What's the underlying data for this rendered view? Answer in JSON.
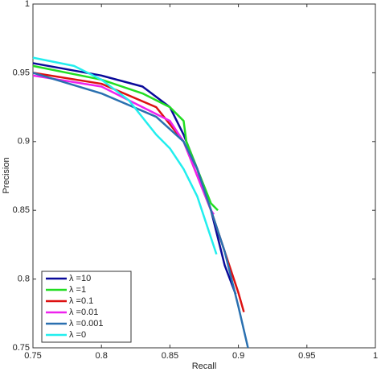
{
  "chart_data": {
    "type": "line",
    "x_label": "Recall",
    "y_label": "Precision",
    "xlim": [
      0.75,
      1
    ],
    "ylim": [
      0.75,
      1
    ],
    "xticks": [
      0.75,
      0.8,
      0.85,
      0.9,
      0.95,
      1
    ],
    "yticks": [
      0.75,
      0.8,
      0.85,
      0.9,
      0.95,
      1
    ],
    "legend": "lower-left",
    "series": [
      {
        "name": "λ =10",
        "color": "#0a0a9a",
        "x": [
          0.75,
          0.8,
          0.83,
          0.85,
          0.86,
          0.87,
          0.88,
          0.89,
          0.898
        ],
        "values": [
          0.957,
          0.948,
          0.94,
          0.925,
          0.905,
          0.88,
          0.85,
          0.81,
          0.789
        ]
      },
      {
        "name": "λ =1",
        "color": "#22dd22",
        "x": [
          0.75,
          0.8,
          0.83,
          0.85,
          0.86,
          0.862,
          0.87,
          0.88,
          0.885
        ],
        "values": [
          0.955,
          0.945,
          0.935,
          0.925,
          0.915,
          0.9,
          0.88,
          0.855,
          0.85
        ]
      },
      {
        "name": "λ =0.1",
        "color": "#dd1111",
        "x": [
          0.75,
          0.8,
          0.84,
          0.86,
          0.87,
          0.88,
          0.89,
          0.9,
          0.904
        ],
        "values": [
          0.95,
          0.942,
          0.925,
          0.9,
          0.875,
          0.85,
          0.82,
          0.79,
          0.776
        ]
      },
      {
        "name": "λ =0.01",
        "color": "#ee22ee",
        "x": [
          0.75,
          0.8,
          0.85,
          0.86,
          0.87,
          0.88,
          0.882
        ],
        "values": [
          0.948,
          0.94,
          0.915,
          0.9,
          0.875,
          0.85,
          0.847
        ]
      },
      {
        "name": "λ =0.001",
        "color": "#2a70b0",
        "x": [
          0.75,
          0.8,
          0.84,
          0.86,
          0.87,
          0.88,
          0.89,
          0.9,
          0.907
        ],
        "values": [
          0.95,
          0.935,
          0.918,
          0.9,
          0.88,
          0.85,
          0.82,
          0.78,
          0.75
        ]
      },
      {
        "name": "λ =0",
        "color": "#22eeee",
        "x": [
          0.75,
          0.78,
          0.8,
          0.82,
          0.84,
          0.85,
          0.86,
          0.87,
          0.88,
          0.884
        ],
        "values": [
          0.961,
          0.955,
          0.945,
          0.93,
          0.905,
          0.895,
          0.88,
          0.86,
          0.83,
          0.818
        ]
      }
    ]
  }
}
